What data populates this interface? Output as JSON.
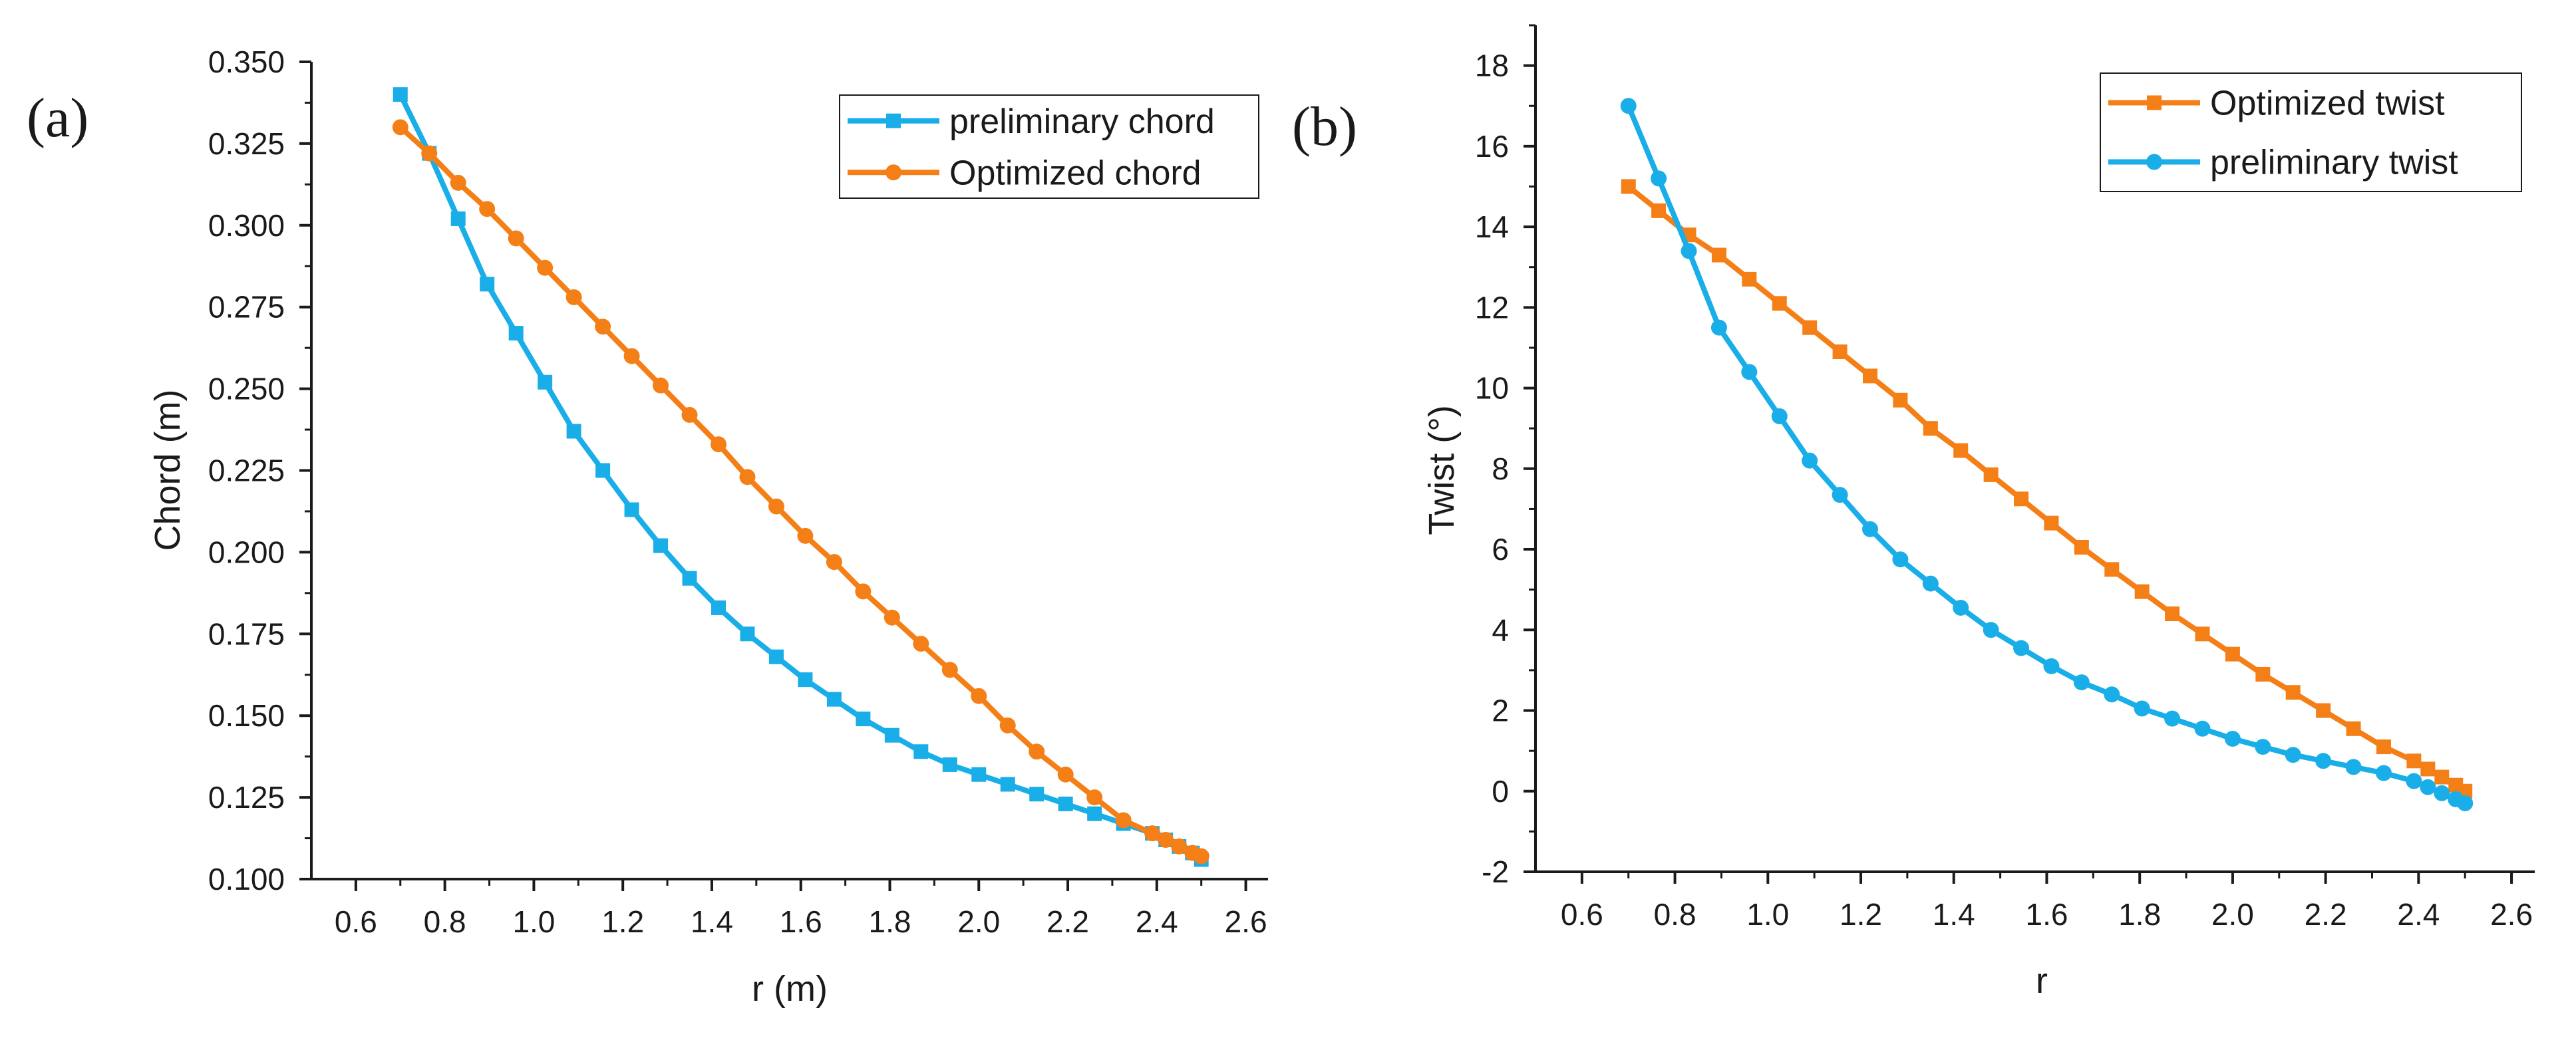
{
  "chart_data": [
    {
      "type": "line",
      "panel_label": "(a)",
      "xlabel": "r (m)",
      "ylabel": "Chord (m)",
      "xlim": [
        0.5,
        2.65
      ],
      "ylim": [
        0.1,
        0.35
      ],
      "xticks": [
        0.6,
        0.8,
        1.0,
        1.2,
        1.4,
        1.6,
        1.8,
        2.0,
        2.2,
        2.4,
        2.6
      ],
      "xtick_labels": [
        "0.6",
        "0.8",
        "1.0",
        "1.2",
        "1.4",
        "1.6",
        "1.8",
        "2.0",
        "2.2",
        "2.4",
        "2.6"
      ],
      "yticks": [
        0.1,
        0.125,
        0.15,
        0.175,
        0.2,
        0.225,
        0.25,
        0.275,
        0.3,
        0.325,
        0.35
      ],
      "ytick_labels": [
        "0.100",
        "0.125",
        "0.150",
        "0.175",
        "0.200",
        "0.225",
        "0.250",
        "0.275",
        "0.300",
        "0.325",
        "0.350"
      ],
      "legend_position": "top-right",
      "series": [
        {
          "name": "preliminary chord",
          "color": "#1aaee8",
          "marker": "square",
          "x": [
            0.7,
            0.765,
            0.83,
            0.895,
            0.96,
            1.025,
            1.09,
            1.155,
            1.22,
            1.285,
            1.35,
            1.415,
            1.48,
            1.545,
            1.61,
            1.675,
            1.74,
            1.805,
            1.87,
            1.935,
            2.0,
            2.065,
            2.13,
            2.195,
            2.26,
            2.325,
            2.39,
            2.42,
            2.45,
            2.48,
            2.5
          ],
          "y": [
            0.34,
            0.322,
            0.302,
            0.282,
            0.267,
            0.252,
            0.237,
            0.225,
            0.213,
            0.202,
            0.192,
            0.183,
            0.175,
            0.168,
            0.161,
            0.155,
            0.149,
            0.144,
            0.139,
            0.135,
            0.132,
            0.129,
            0.126,
            0.123,
            0.12,
            0.117,
            0.114,
            0.112,
            0.11,
            0.108,
            0.106
          ]
        },
        {
          "name": "Optimized chord",
          "color": "#f57f17",
          "marker": "circle",
          "x": [
            0.7,
            0.765,
            0.83,
            0.895,
            0.96,
            1.025,
            1.09,
            1.155,
            1.22,
            1.285,
            1.35,
            1.415,
            1.48,
            1.545,
            1.61,
            1.675,
            1.74,
            1.805,
            1.87,
            1.935,
            2.0,
            2.065,
            2.13,
            2.195,
            2.26,
            2.325,
            2.39,
            2.42,
            2.45,
            2.48,
            2.5
          ],
          "y": [
            0.33,
            0.322,
            0.313,
            0.305,
            0.296,
            0.287,
            0.278,
            0.269,
            0.26,
            0.251,
            0.242,
            0.233,
            0.223,
            0.214,
            0.205,
            0.197,
            0.188,
            0.18,
            0.172,
            0.164,
            0.156,
            0.147,
            0.139,
            0.132,
            0.125,
            0.118,
            0.114,
            0.112,
            0.11,
            0.108,
            0.107
          ]
        }
      ]
    },
    {
      "type": "line",
      "panel_label": "(b)",
      "xlabel": "r",
      "ylabel": "Twist (°)",
      "xlim": [
        0.5,
        2.65
      ],
      "ylim": [
        -2,
        19
      ],
      "xticks": [
        0.6,
        0.8,
        1.0,
        1.2,
        1.4,
        1.6,
        1.8,
        2.0,
        2.2,
        2.4,
        2.6
      ],
      "xtick_labels": [
        "0.6",
        "0.8",
        "1.0",
        "1.2",
        "1.4",
        "1.6",
        "1.8",
        "2.0",
        "2.2",
        "2.4",
        "2.6"
      ],
      "yticks": [
        -2,
        0,
        2,
        4,
        6,
        8,
        10,
        12,
        14,
        16,
        18
      ],
      "ytick_labels": [
        "-2",
        "0",
        "2",
        "4",
        "6",
        "8",
        "10",
        "12",
        "14",
        "16",
        "18"
      ],
      "legend_position": "top-right",
      "series": [
        {
          "name": "Optimized twist",
          "color": "#f57f17",
          "marker": "square",
          "x": [
            0.7,
            0.765,
            0.83,
            0.895,
            0.96,
            1.025,
            1.09,
            1.155,
            1.22,
            1.285,
            1.35,
            1.415,
            1.48,
            1.545,
            1.61,
            1.675,
            1.74,
            1.805,
            1.87,
            1.935,
            2.0,
            2.065,
            2.13,
            2.195,
            2.26,
            2.325,
            2.39,
            2.42,
            2.45,
            2.48,
            2.5
          ],
          "y": [
            15.0,
            14.4,
            13.8,
            13.3,
            12.7,
            12.1,
            11.5,
            10.9,
            10.3,
            9.7,
            9.0,
            8.45,
            7.85,
            7.25,
            6.65,
            6.05,
            5.5,
            4.95,
            4.4,
            3.9,
            3.4,
            2.9,
            2.45,
            2.0,
            1.55,
            1.1,
            0.75,
            0.55,
            0.35,
            0.15,
            0.0
          ]
        },
        {
          "name": "preliminary twist",
          "color": "#1aaee8",
          "marker": "circle",
          "x": [
            0.7,
            0.765,
            0.83,
            0.895,
            0.96,
            1.025,
            1.09,
            1.155,
            1.22,
            1.285,
            1.35,
            1.415,
            1.48,
            1.545,
            1.61,
            1.675,
            1.74,
            1.805,
            1.87,
            1.935,
            2.0,
            2.065,
            2.13,
            2.195,
            2.26,
            2.325,
            2.39,
            2.42,
            2.45,
            2.48,
            2.5
          ],
          "y": [
            17.0,
            15.2,
            13.4,
            11.5,
            10.4,
            9.3,
            8.2,
            7.35,
            6.5,
            5.75,
            5.15,
            4.55,
            4.0,
            3.55,
            3.1,
            2.7,
            2.4,
            2.05,
            1.8,
            1.55,
            1.3,
            1.1,
            0.9,
            0.75,
            0.6,
            0.45,
            0.25,
            0.1,
            -0.05,
            -0.2,
            -0.3
          ]
        }
      ]
    }
  ]
}
